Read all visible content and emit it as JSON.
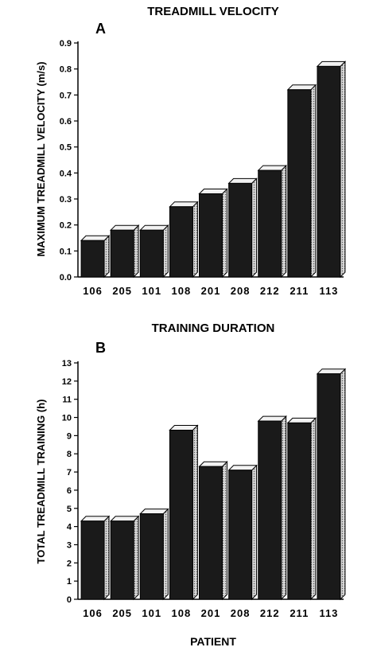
{
  "chart_data": [
    {
      "type": "bar",
      "title": "TREADMILL VELOCITY",
      "panel_label": "A",
      "ylabel": "MAXIMUM TREADMILL VELOCITY (m/s)",
      "xlabel": "",
      "ylim": [
        0,
        0.9
      ],
      "yticks": [
        "0.0",
        "0.1",
        "0.2",
        "0.3",
        "0.4",
        "0.5",
        "0.6",
        "0.7",
        "0.8",
        "0.9"
      ],
      "categories": [
        "106",
        "205",
        "101",
        "108",
        "201",
        "208",
        "212",
        "211",
        "113"
      ],
      "values": [
        0.14,
        0.18,
        0.18,
        0.27,
        0.32,
        0.36,
        0.41,
        0.72,
        0.81
      ],
      "grid": false
    },
    {
      "type": "bar",
      "title": "TRAINING DURATION",
      "panel_label": "B",
      "ylabel": "TOTAL TREADMILL TRAINING (h)",
      "xlabel": "PATIENT",
      "ylim": [
        0,
        13
      ],
      "yticks": [
        "0",
        "1",
        "2",
        "3",
        "4",
        "5",
        "6",
        "7",
        "8",
        "9",
        "10",
        "11",
        "12",
        "13"
      ],
      "categories": [
        "106",
        "205",
        "101",
        "108",
        "201",
        "208",
        "212",
        "211",
        "113"
      ],
      "values": [
        4.3,
        4.3,
        4.7,
        9.3,
        7.3,
        7.1,
        9.8,
        9.7,
        12.4
      ],
      "grid": false
    }
  ],
  "colors": {
    "bar_front": "#1a1a1a",
    "bar_side": "#b8b8b8",
    "bar_top": "#f2f2f2",
    "axis": "#000000"
  }
}
